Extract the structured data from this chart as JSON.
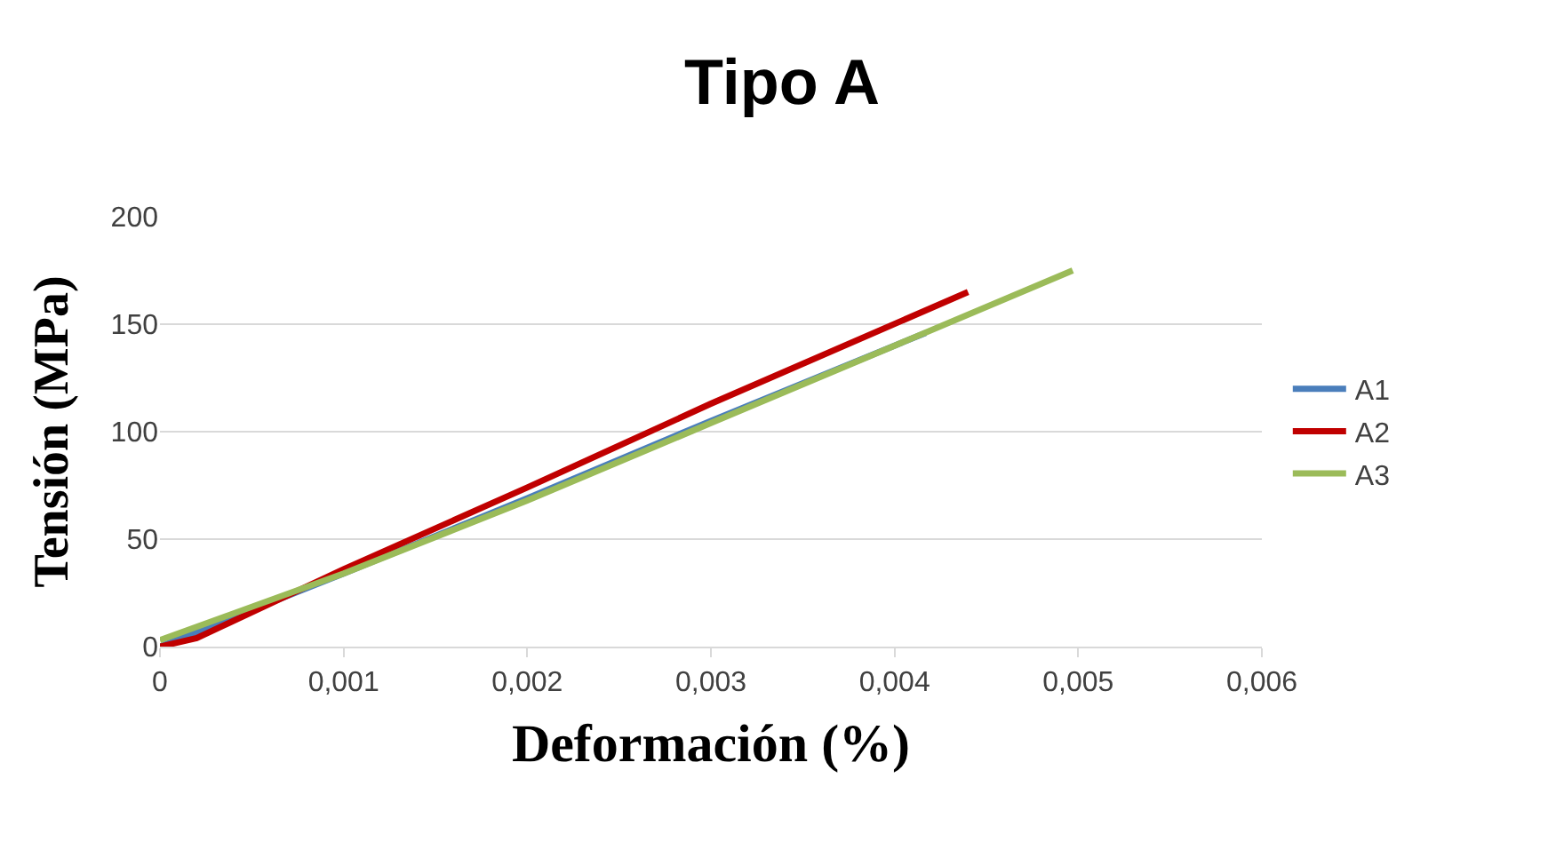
{
  "chart_data": {
    "type": "line",
    "title": "Tipo A",
    "xlabel": "Deformación (%)",
    "ylabel": "Tensión (MPa)",
    "xlim": [
      0,
      0.006
    ],
    "ylim": [
      0,
      200
    ],
    "xticks": [
      0,
      {
        "value": 0.001,
        "label": "0,001"
      },
      {
        "value": 0.002,
        "label": "0,002"
      },
      {
        "value": 0.003,
        "label": "0,003"
      },
      {
        "value": 0.004,
        "label": "0,004"
      },
      {
        "value": 0.005,
        "label": "0,005"
      },
      {
        "value": 0.006,
        "label": "0,006"
      }
    ],
    "yticks": [
      0,
      50,
      100,
      150,
      200
    ],
    "grid": "y",
    "legend": "right",
    "marker": "none",
    "line_style": "solid",
    "series": [
      {
        "name": "A1",
        "color": "#4a7ebb",
        "x": [
          0,
          0.001,
          0.002,
          0.003,
          0.00417
        ],
        "values": [
          0,
          34,
          69,
          105,
          146
        ]
      },
      {
        "name": "A2",
        "color": "#c00000",
        "x": [
          0,
          0.0002,
          0.001,
          0.002,
          0.003,
          0.0044
        ],
        "values": [
          0,
          4,
          36,
          74,
          113,
          165
        ]
      },
      {
        "name": "A3",
        "color": "#9bbb59",
        "x": [
          0,
          0.001,
          0.002,
          0.003,
          0.004,
          0.00497
        ],
        "values": [
          3,
          34,
          68,
          104,
          140,
          175
        ]
      }
    ]
  }
}
